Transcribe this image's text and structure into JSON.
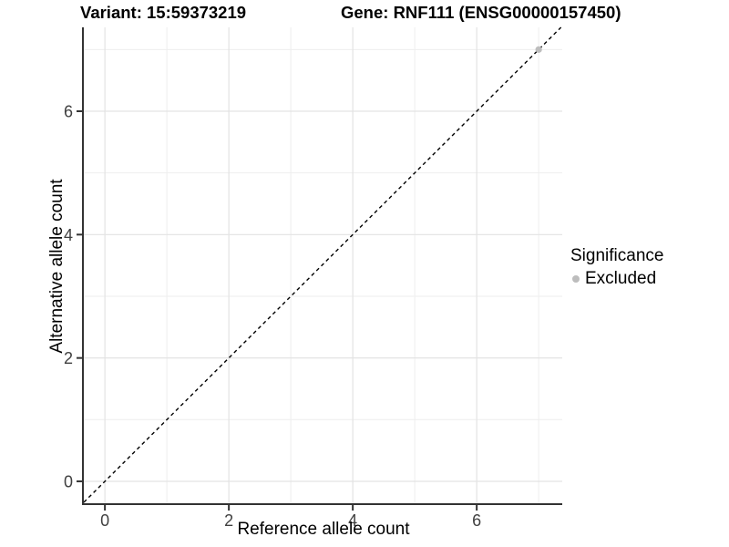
{
  "chart_data": {
    "type": "scatter",
    "title_left": "Variant: 15:59373219",
    "title_right": "Gene: RNF111 (ENSG00000157450)",
    "xlabel": "Reference allele count",
    "ylabel": "Alternative allele count",
    "xlim": [
      -0.34,
      7.38
    ],
    "ylim": [
      -0.37,
      7.36
    ],
    "xticks": [
      0,
      2,
      4,
      6
    ],
    "yticks": [
      0,
      2,
      4,
      6
    ],
    "xminor": [
      1,
      3,
      5,
      7
    ],
    "yminor": [
      1,
      3,
      5,
      7
    ],
    "grid": true,
    "legend_position": "right",
    "reference_line": {
      "type": "identity",
      "slope": 1,
      "intercept": 0,
      "style": "dashed",
      "color": "#000000"
    },
    "series": [
      {
        "name": "Excluded",
        "color": "#bdbdbd",
        "points": [
          {
            "x": 7,
            "y": 7
          }
        ]
      }
    ],
    "legend": {
      "title": "Significance",
      "items": [
        {
          "label": "Excluded",
          "color": "#bdbdbd",
          "icon": "point-icon"
        }
      ]
    },
    "colors": {
      "panel_background": "#ffffff",
      "grid_major": "#e3e3e3",
      "grid_minor": "#eeeeee",
      "axis_line": "#333333",
      "tick_mark": "#333333",
      "tick_text": "#404040"
    }
  }
}
